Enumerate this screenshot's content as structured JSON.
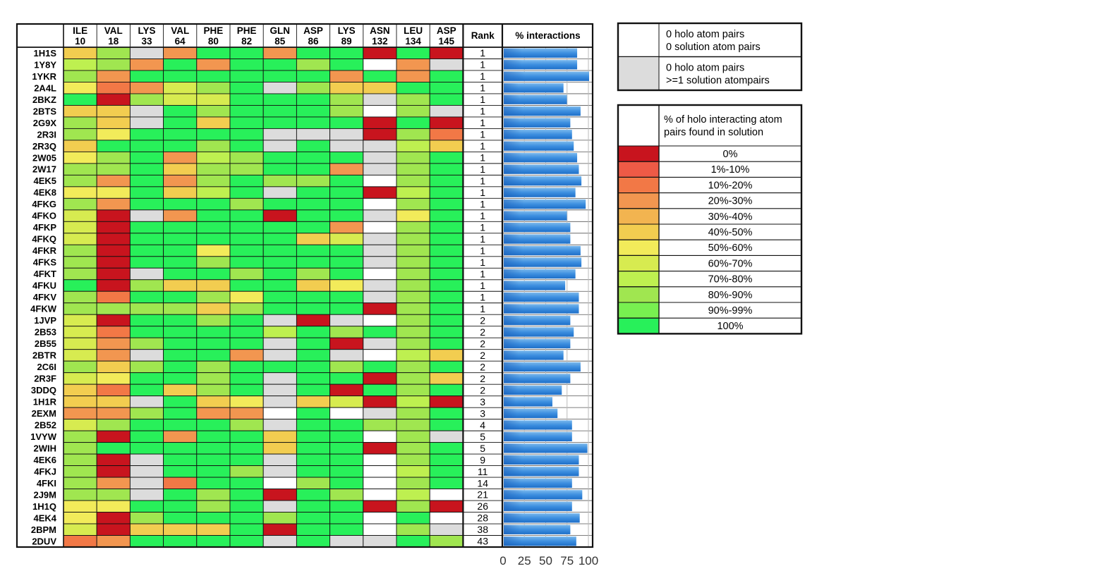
{
  "chart_data": {
    "type": "heatmap",
    "columns": [
      {
        "name": "ILE",
        "num": "10"
      },
      {
        "name": "VAL",
        "num": "18"
      },
      {
        "name": "LYS",
        "num": "33"
      },
      {
        "name": "VAL",
        "num": "64"
      },
      {
        "name": "PHE",
        "num": "80"
      },
      {
        "name": "PHE",
        "num": "82"
      },
      {
        "name": "GLN",
        "num": "85"
      },
      {
        "name": "ASP",
        "num": "86"
      },
      {
        "name": "LYS",
        "num": "89"
      },
      {
        "name": "ASN",
        "num": "132"
      },
      {
        "name": "LEU",
        "num": "134"
      },
      {
        "name": "ASP",
        "num": "145"
      }
    ],
    "rank_header": "Rank",
    "bar_header": "% interactions",
    "bar_axis_ticks": [
      0,
      25,
      50,
      75,
      100
    ],
    "bar_xlim": [
      0,
      100
    ],
    "rows": [
      {
        "id": "1H1S",
        "rank": "1",
        "pct": 86,
        "cells": "ZVG3SS3SSXSX"
      },
      {
        "id": "1Y8Y",
        "rank": "1",
        "pct": 86,
        "cells": "8V3S3SSVSW3G"
      },
      {
        "id": "1YKR",
        "rank": "1",
        "pct": 100,
        "cells": "V3SSSSSS3S3S"
      },
      {
        "id": "2A4L",
        "rank": "1",
        "pct": 70,
        "cells": "6237VSGVZZSS"
      },
      {
        "id": "2BKZ",
        "rank": "1",
        "pct": 74,
        "cells": "SXV77SSSVGVS"
      },
      {
        "id": "2BTS",
        "rank": "1",
        "pct": 90,
        "cells": "ZZGSVSSSVWVG"
      },
      {
        "id": "2G9X",
        "rank": "1",
        "pct": 78,
        "cells": "VZGSZSSSSXSX"
      },
      {
        "id": "2R3I",
        "rank": "1",
        "pct": 80,
        "cells": "V6SSSSGGGXV2"
      },
      {
        "id": "2R3Q",
        "rank": "1",
        "pct": 82,
        "cells": "ZSSSVSGSGG8Z"
      },
      {
        "id": "2W05",
        "rank": "1",
        "pct": 86,
        "cells": "6VS38VSSSGVS"
      },
      {
        "id": "2W17",
        "rank": "1",
        "pct": 88,
        "cells": "VVSZVVSS3GVS"
      },
      {
        "id": "4EK5",
        "rank": "1",
        "pct": 91,
        "cells": "V3S3VSVVSWVS"
      },
      {
        "id": "4EK8",
        "rank": "1",
        "pct": 84,
        "cells": "66SZ8SGSSX8S"
      },
      {
        "id": "4FKG",
        "rank": "1",
        "pct": 96,
        "cells": "V3SSSVSSSWVS"
      },
      {
        "id": "4FKO",
        "rank": "1",
        "pct": 74,
        "cells": "7XG3SSXSSG6S"
      },
      {
        "id": "4FKP",
        "rank": "1",
        "pct": 78,
        "cells": "7XSSSSSS3WVS"
      },
      {
        "id": "4FKQ",
        "rank": "1",
        "pct": 78,
        "cells": "7XSSSSSZ7GVS"
      },
      {
        "id": "4FKR",
        "rank": "1",
        "pct": 90,
        "cells": "VXSS6SSSSGVS"
      },
      {
        "id": "4FKS",
        "rank": "1",
        "pct": 91,
        "cells": "VXSSVSSSSGVS"
      },
      {
        "id": "4FKT",
        "rank": "1",
        "pct": 84,
        "cells": "VXGSSVSVSWVS"
      },
      {
        "id": "4FKU",
        "rank": "1",
        "pct": 72,
        "cells": "SXVZZSSZ6GVS"
      },
      {
        "id": "4FKV",
        "rank": "1",
        "pct": 88,
        "cells": "V2SSV6SSSGVS"
      },
      {
        "id": "4FKW",
        "rank": "1",
        "pct": 88,
        "cells": "VVVVZVSSSXVS"
      },
      {
        "id": "1JVP",
        "rank": "2",
        "pct": 78,
        "cells": "7XSSVSGXGWVS"
      },
      {
        "id": "2B53",
        "rank": "2",
        "pct": 82,
        "cells": "72SSSS8SVSVS"
      },
      {
        "id": "2B55",
        "rank": "2",
        "pct": 78,
        "cells": "73VSSSGSXGVS"
      },
      {
        "id": "2BTR",
        "rank": "2",
        "pct": 70,
        "cells": "73GSS3GSGW8Z"
      },
      {
        "id": "2C6I",
        "rank": "2",
        "pct": 90,
        "cells": "VZVSVSSSVSVS"
      },
      {
        "id": "2R3F",
        "rank": "2",
        "pct": 78,
        "cells": "76SSVSGSSXVZ"
      },
      {
        "id": "3DDQ",
        "rank": "2",
        "pct": 68,
        "cells": "Z2SZVSGSXSVS"
      },
      {
        "id": "1H1R",
        "rank": "3",
        "pct": 57,
        "cells": "ZZGSZ6GZ7X8X"
      },
      {
        "id": "2EXM",
        "rank": "3",
        "pct": 63,
        "cells": "33VS33WSWGVS"
      },
      {
        "id": "2B52",
        "rank": "4",
        "pct": 80,
        "cells": "7VSSSVGSSVVS"
      },
      {
        "id": "1VYW",
        "rank": "5",
        "pct": 80,
        "cells": "VXS3SSZSSWVG"
      },
      {
        "id": "2WIH",
        "rank": "5",
        "pct": 98,
        "cells": "VSSSSSZSSXVS"
      },
      {
        "id": "4EK6",
        "rank": "9",
        "pct": 88,
        "cells": "VXGSSSGSSWVS"
      },
      {
        "id": "4FKJ",
        "rank": "11",
        "pct": 88,
        "cells": "VXGSSVGSSW8S"
      },
      {
        "id": "4FKI",
        "rank": "14",
        "pct": 80,
        "cells": "V3G2SSWVSWVS"
      },
      {
        "id": "2J9M",
        "rank": "21",
        "pct": 92,
        "cells": "VVGSVSXSVW8W"
      },
      {
        "id": "1H1Q",
        "rank": "26",
        "pct": 80,
        "cells": "66SSVSGSSXVX"
      },
      {
        "id": "4EK4",
        "rank": "28",
        "pct": 89,
        "cells": "6XVSSSVSSWSW"
      },
      {
        "id": "2BPM",
        "rank": "38",
        "pct": 78,
        "cells": "7XZZZSXSSWVG"
      },
      {
        "id": "2DUV",
        "rank": "43",
        "pct": 85,
        "cells": "23SSSSGSGGSV"
      }
    ]
  },
  "legend": {
    "box1": [
      {
        "code": "W",
        "color": "#ffffff",
        "line1": "0 holo atom pairs",
        "line2": "0 solution atom pairs"
      },
      {
        "code": "G",
        "color": "#dcdcdc",
        "line1": "0 holo atom pairs",
        "line2": ">=1 solution atompairs"
      }
    ],
    "box2_title_line1": "% of holo interacting atom",
    "box2_title_line2": "pairs found in solution",
    "box2": [
      {
        "code": "X",
        "color": "#c8141e",
        "label": "0%"
      },
      {
        "code": "1",
        "color": "#ee5a46",
        "label": "1%-10%"
      },
      {
        "code": "2",
        "color": "#f27846",
        "label": "10%-20%"
      },
      {
        "code": "3",
        "color": "#f29650",
        "label": "20%-30%"
      },
      {
        "code": "4",
        "color": "#f2b450",
        "label": "30%-40%"
      },
      {
        "code": "Z",
        "color": "#f2cd50",
        "label": "40%-50%"
      },
      {
        "code": "6",
        "color": "#f2eb5a",
        "label": "50%-60%"
      },
      {
        "code": "7",
        "color": "#d7eb50",
        "label": "60%-70%"
      },
      {
        "code": "8",
        "color": "#bef050",
        "label": "70%-80%"
      },
      {
        "code": "V",
        "color": "#a0e650",
        "label": "80%-90%"
      },
      {
        "code": "9",
        "color": "#78f050",
        "label": "90%-99%"
      },
      {
        "code": "S",
        "color": "#28f05a",
        "label": "100%"
      }
    ]
  }
}
